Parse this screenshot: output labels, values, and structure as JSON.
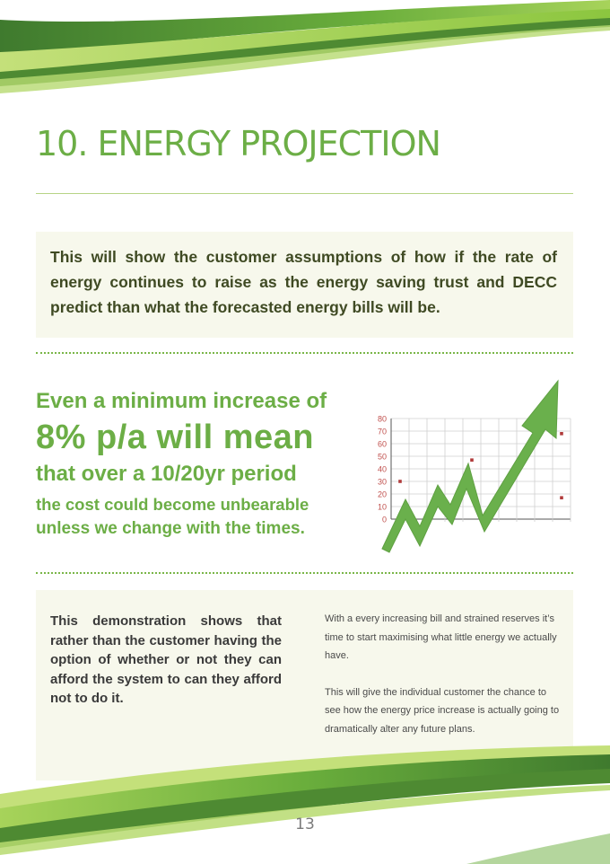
{
  "header": {
    "title": "10. ENERGY PROJECTION"
  },
  "intro": {
    "text": "This will show the customer assumptions of how if the rate of energy continues to raise as the energy saving trust and DECC predict than what the forecasted energy bills will be."
  },
  "highlight": {
    "line1": "Even a minimum increase of",
    "line2": "8% p/a will mean",
    "line3": "that over a 10/20yr period",
    "line4": "the cost could become unbearable",
    "line5": "unless we change with the times."
  },
  "chart_data": {
    "type": "scatter",
    "title": "",
    "xlabel": "",
    "ylabel": "",
    "y_ticks": [
      0,
      10,
      20,
      30,
      40,
      50,
      60,
      70,
      80
    ],
    "ylim": [
      0,
      80
    ],
    "grid": true,
    "x_ticks_count": 10,
    "points": [
      {
        "x": 0.5,
        "y": 30
      },
      {
        "x": 4.5,
        "y": 47
      },
      {
        "x": 9.5,
        "y": 17
      },
      {
        "x": 9.5,
        "y": 68
      }
    ],
    "trend_arrow": {
      "direction": "up",
      "color": "#6ab04c"
    },
    "colors": {
      "marker": "#b03a3a",
      "grid": "#cfcfcf",
      "tick_label": "#c0504d"
    }
  },
  "bottom": {
    "left_text": "This demonstration shows that rather than the customer having the option of whether or not they can afford the system to can they afford not to do it.",
    "right_para1": "With a every increasing bill and strained reserves it’s time to start maximising what little energy we actually have.",
    "right_para2": "This will give the individual customer the chance to see how the energy price increase is actually going to dramatically alter any future plans."
  },
  "footer": {
    "page_number": "13"
  },
  "colors": {
    "accent_green": "#6cae46",
    "box_bg": "#f7f8ec",
    "dark_green": "#3a6e2a",
    "light_green": "#9ccc4a"
  }
}
